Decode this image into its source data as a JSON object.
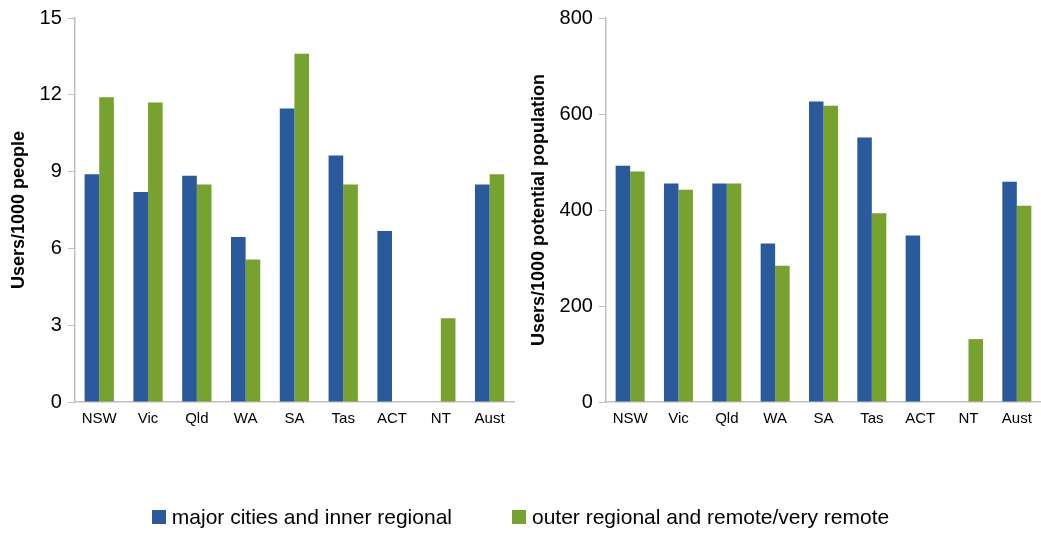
{
  "chart_data": [
    {
      "type": "bar",
      "ylabel": "Users/1000 people",
      "categories": [
        "NSW",
        "Vic",
        "Qld",
        "WA",
        "SA",
        "Tas",
        "ACT",
        "NT",
        "Aust"
      ],
      "ylim": [
        0,
        15
      ],
      "yticks": [
        0,
        3,
        6,
        9,
        12,
        15
      ],
      "grid": false,
      "legend": "bottom",
      "series": [
        {
          "name": "major cities and inner regional",
          "color": "#2a5a9b",
          "values": [
            8.9,
            8.2,
            8.84,
            6.45,
            11.46,
            9.63,
            6.68,
            null,
            8.5
          ]
        },
        {
          "name": "outer regional and remote/very remote",
          "color": "#77a22f",
          "values": [
            11.9,
            11.7,
            8.5,
            5.57,
            13.6,
            8.5,
            null,
            3.27,
            8.9
          ]
        }
      ]
    },
    {
      "type": "bar",
      "ylabel": "Users/1000 potential population",
      "categories": [
        "NSW",
        "Vic",
        "Qld",
        "WA",
        "SA",
        "Tas",
        "ACT",
        "NT",
        "Aust"
      ],
      "ylim": [
        0,
        800
      ],
      "yticks": [
        0,
        200,
        400,
        600,
        800
      ],
      "grid": false,
      "series": [
        {
          "color": "#2a5a9b",
          "values": [
            492,
            455,
            455,
            330,
            626,
            551,
            347,
            null,
            459
          ]
        },
        {
          "color": "#77a22f",
          "values": [
            480,
            442,
            455,
            284,
            617,
            393,
            null,
            131,
            409
          ]
        }
      ]
    }
  ]
}
